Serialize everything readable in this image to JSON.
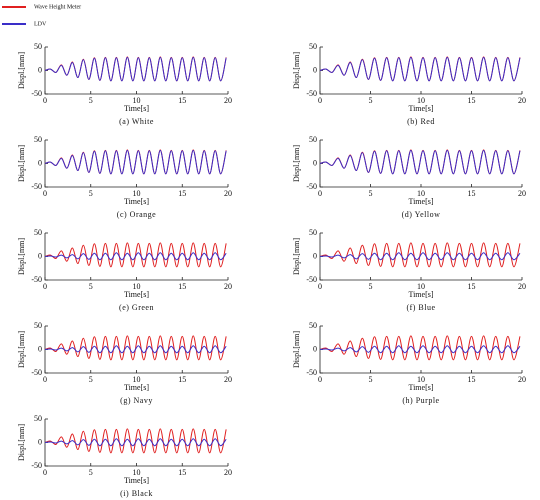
{
  "chart_data": [
    {
      "type": "line",
      "caption": "(a) White",
      "x_label": "Time[s]",
      "y_label": "Displ.[mm]",
      "xlim": [
        0,
        20
      ],
      "ylim": [
        -50,
        50
      ],
      "xticks": [
        0,
        5,
        10,
        15,
        20
      ],
      "yticks": [
        -50,
        0,
        50
      ],
      "x": [
        0,
        0.6,
        1.2,
        1.8,
        2.4,
        3,
        3.6,
        4.2,
        4.8,
        5.4,
        6,
        6.6,
        7.2,
        7.8,
        8.4,
        9,
        9.6,
        10.2,
        10.8,
        11.4,
        12,
        12.6,
        13.2,
        13.8,
        14.4,
        15,
        15.6,
        16.2,
        16.8,
        17.4,
        18,
        18.6,
        19.2,
        19.8
      ],
      "series": [
        {
          "name": "Wave Height Meter",
          "color": "#e02020",
          "values": [
            0,
            3,
            -4,
            12,
            -10,
            18,
            -15,
            24,
            -19,
            27,
            -21,
            28,
            -22,
            28,
            -22,
            29,
            -22,
            28,
            -22,
            28,
            -22,
            29,
            -22,
            28,
            -22,
            28,
            -22,
            29,
            -22,
            28,
            -22,
            28,
            -22,
            28
          ]
        },
        {
          "name": "LDV",
          "color": "#3a2ec8",
          "values": [
            0,
            3,
            -4,
            11,
            -10,
            17,
            -15,
            23,
            -19,
            26,
            -21,
            27,
            -22,
            27,
            -22,
            28,
            -22,
            27,
            -22,
            27,
            -22,
            28,
            -22,
            27,
            -22,
            27,
            -22,
            28,
            -22,
            27,
            -22,
            27,
            -22,
            27
          ]
        }
      ]
    },
    {
      "type": "line",
      "caption": "(b) Red",
      "x_label": "Time[s]",
      "y_label": "Displ.[mm]",
      "xlim": [
        0,
        20
      ],
      "ylim": [
        -50,
        50
      ],
      "xticks": [
        0,
        5,
        10,
        15,
        20
      ],
      "yticks": [
        -50,
        0,
        50
      ],
      "x": [
        0,
        0.6,
        1.2,
        1.8,
        2.4,
        3,
        3.6,
        4.2,
        4.8,
        5.4,
        6,
        6.6,
        7.2,
        7.8,
        8.4,
        9,
        9.6,
        10.2,
        10.8,
        11.4,
        12,
        12.6,
        13.2,
        13.8,
        14.4,
        15,
        15.6,
        16.2,
        16.8,
        17.4,
        18,
        18.6,
        19.2,
        19.8
      ],
      "series": [
        {
          "name": "Wave Height Meter",
          "color": "#e02020",
          "values": [
            0,
            3,
            -4,
            12,
            -10,
            18,
            -15,
            24,
            -19,
            27,
            -21,
            28,
            -22,
            28,
            -22,
            29,
            -22,
            28,
            -22,
            28,
            -22,
            29,
            -22,
            28,
            -22,
            28,
            -22,
            29,
            -22,
            28,
            -22,
            28,
            -22,
            28
          ]
        },
        {
          "name": "LDV",
          "color": "#3a2ec8",
          "values": [
            0,
            3,
            -4,
            11,
            -10,
            17,
            -15,
            23,
            -19,
            26,
            -21,
            27,
            -22,
            27,
            -22,
            28,
            -22,
            27,
            -22,
            27,
            -22,
            28,
            -22,
            27,
            -22,
            27,
            -22,
            28,
            -22,
            27,
            -22,
            27,
            -22,
            27
          ]
        }
      ]
    },
    {
      "type": "line",
      "caption": "(c) Orange",
      "x_label": "Time[s]",
      "y_label": "Displ.[mm]",
      "xlim": [
        0,
        20
      ],
      "ylim": [
        -50,
        50
      ],
      "xticks": [
        0,
        5,
        10,
        15,
        20
      ],
      "yticks": [
        -50,
        0,
        50
      ],
      "x": [
        0,
        0.6,
        1.2,
        1.8,
        2.4,
        3,
        3.6,
        4.2,
        4.8,
        5.4,
        6,
        6.6,
        7.2,
        7.8,
        8.4,
        9,
        9.6,
        10.2,
        10.8,
        11.4,
        12,
        12.6,
        13.2,
        13.8,
        14.4,
        15,
        15.6,
        16.2,
        16.8,
        17.4,
        18,
        18.6,
        19.2,
        19.8
      ],
      "series": [
        {
          "name": "Wave Height Meter",
          "color": "#e02020",
          "values": [
            0,
            3,
            -4,
            12,
            -10,
            18,
            -15,
            24,
            -19,
            27,
            -21,
            28,
            -22,
            28,
            -22,
            29,
            -22,
            28,
            -22,
            28,
            -22,
            29,
            -22,
            28,
            -22,
            28,
            -22,
            29,
            -22,
            28,
            -22,
            28,
            -22,
            28
          ]
        },
        {
          "name": "LDV",
          "color": "#3a2ec8",
          "values": [
            0,
            3,
            -4,
            11,
            -10,
            17,
            -15,
            23,
            -19,
            26,
            -21,
            27,
            -22,
            27,
            -22,
            28,
            -22,
            27,
            -22,
            27,
            -22,
            28,
            -22,
            27,
            -22,
            27,
            -22,
            28,
            -22,
            27,
            -22,
            27,
            -22,
            27
          ]
        }
      ]
    },
    {
      "type": "line",
      "caption": "(d) Yellow",
      "x_label": "Time[s]",
      "y_label": "Displ.[mm]",
      "xlim": [
        0,
        20
      ],
      "ylim": [
        -50,
        50
      ],
      "xticks": [
        0,
        5,
        10,
        15,
        20
      ],
      "yticks": [
        -50,
        0,
        50
      ],
      "x": [
        0,
        0.6,
        1.2,
        1.8,
        2.4,
        3,
        3.6,
        4.2,
        4.8,
        5.4,
        6,
        6.6,
        7.2,
        7.8,
        8.4,
        9,
        9.6,
        10.2,
        10.8,
        11.4,
        12,
        12.6,
        13.2,
        13.8,
        14.4,
        15,
        15.6,
        16.2,
        16.8,
        17.4,
        18,
        18.6,
        19.2,
        19.8
      ],
      "series": [
        {
          "name": "Wave Height Meter",
          "color": "#e02020",
          "values": [
            0,
            3,
            -4,
            12,
            -10,
            18,
            -15,
            24,
            -19,
            27,
            -21,
            28,
            -22,
            28,
            -22,
            29,
            -22,
            28,
            -22,
            28,
            -22,
            29,
            -22,
            28,
            -22,
            28,
            -22,
            29,
            -22,
            28,
            -22,
            28,
            -22,
            28
          ]
        },
        {
          "name": "LDV",
          "color": "#3a2ec8",
          "values": [
            0,
            3,
            -4,
            11,
            -10,
            17,
            -15,
            23,
            -19,
            26,
            -21,
            27,
            -22,
            27,
            -22,
            28,
            -22,
            27,
            -22,
            27,
            -22,
            28,
            -22,
            27,
            -22,
            27,
            -22,
            28,
            -22,
            27,
            -22,
            27,
            -22,
            27
          ]
        }
      ]
    },
    {
      "type": "line",
      "caption": "(e) Green",
      "x_label": "Time[s]",
      "y_label": "Displ.[mm]",
      "xlim": [
        0,
        20
      ],
      "ylim": [
        -50,
        50
      ],
      "xticks": [
        0,
        5,
        10,
        15,
        20
      ],
      "yticks": [
        -50,
        0,
        50
      ],
      "x": [
        0,
        0.6,
        1.2,
        1.8,
        2.4,
        3,
        3.6,
        4.2,
        4.8,
        5.4,
        6,
        6.6,
        7.2,
        7.8,
        8.4,
        9,
        9.6,
        10.2,
        10.8,
        11.4,
        12,
        12.6,
        13.2,
        13.8,
        14.4,
        15,
        15.6,
        16.2,
        16.8,
        17.4,
        18,
        18.6,
        19.2,
        19.8
      ],
      "series": [
        {
          "name": "Wave Height Meter",
          "color": "#e02020",
          "values": [
            0,
            3,
            -4,
            12,
            -10,
            18,
            -15,
            24,
            -19,
            27,
            -21,
            28,
            -22,
            28,
            -22,
            29,
            -22,
            28,
            -22,
            28,
            -22,
            29,
            -22,
            28,
            -22,
            28,
            -22,
            29,
            -22,
            28,
            -22,
            28,
            -22,
            28
          ]
        },
        {
          "name": "LDV",
          "color": "#3a2ec8",
          "values": [
            0,
            1,
            -1,
            3,
            -3,
            4,
            -5,
            6,
            -6,
            7,
            -7,
            7,
            -7,
            8,
            -7,
            7,
            -7,
            8,
            -7,
            7,
            -7,
            8,
            -7,
            7,
            -7,
            7,
            -7,
            8,
            -7,
            7,
            -7,
            8,
            -7,
            7
          ]
        }
      ]
    },
    {
      "type": "line",
      "caption": "(f) Blue",
      "x_label": "Time[s]",
      "y_label": "Displ.[mm]",
      "xlim": [
        0,
        20
      ],
      "ylim": [
        -50,
        50
      ],
      "xticks": [
        0,
        5,
        10,
        15,
        20
      ],
      "yticks": [
        -50,
        0,
        50
      ],
      "x": [
        0,
        0.6,
        1.2,
        1.8,
        2.4,
        3,
        3.6,
        4.2,
        4.8,
        5.4,
        6,
        6.6,
        7.2,
        7.8,
        8.4,
        9,
        9.6,
        10.2,
        10.8,
        11.4,
        12,
        12.6,
        13.2,
        13.8,
        14.4,
        15,
        15.6,
        16.2,
        16.8,
        17.4,
        18,
        18.6,
        19.2,
        19.8
      ],
      "series": [
        {
          "name": "Wave Height Meter",
          "color": "#e02020",
          "values": [
            0,
            3,
            -4,
            12,
            -10,
            18,
            -15,
            24,
            -19,
            27,
            -21,
            28,
            -22,
            28,
            -22,
            29,
            -22,
            28,
            -22,
            28,
            -22,
            29,
            -22,
            28,
            -22,
            28,
            -22,
            29,
            -22,
            28,
            -22,
            28,
            -22,
            28
          ]
        },
        {
          "name": "LDV",
          "color": "#3a2ec8",
          "values": [
            0,
            1,
            -1,
            3,
            -3,
            4,
            -5,
            6,
            -6,
            7,
            -7,
            7,
            -7,
            8,
            -7,
            7,
            -7,
            8,
            -7,
            7,
            -7,
            8,
            -7,
            7,
            -7,
            7,
            -7,
            8,
            -7,
            7,
            -7,
            8,
            -7,
            7
          ]
        }
      ]
    },
    {
      "type": "line",
      "caption": "(g) Navy",
      "x_label": "Time[s]",
      "y_label": "Displ.[mm]",
      "xlim": [
        0,
        20
      ],
      "ylim": [
        -50,
        50
      ],
      "xticks": [
        0,
        5,
        10,
        15,
        20
      ],
      "yticks": [
        -50,
        0,
        50
      ],
      "x": [
        0,
        0.6,
        1.2,
        1.8,
        2.4,
        3,
        3.6,
        4.2,
        4.8,
        5.4,
        6,
        6.6,
        7.2,
        7.8,
        8.4,
        9,
        9.6,
        10.2,
        10.8,
        11.4,
        12,
        12.6,
        13.2,
        13.8,
        14.4,
        15,
        15.6,
        16.2,
        16.8,
        17.4,
        18,
        18.6,
        19.2,
        19.8
      ],
      "series": [
        {
          "name": "Wave Height Meter",
          "color": "#e02020",
          "values": [
            0,
            3,
            -4,
            12,
            -10,
            18,
            -15,
            24,
            -19,
            27,
            -21,
            28,
            -22,
            28,
            -22,
            29,
            -22,
            28,
            -22,
            28,
            -22,
            29,
            -22,
            28,
            -22,
            28,
            -22,
            29,
            -22,
            28,
            -22,
            28,
            -22,
            28
          ]
        },
        {
          "name": "LDV",
          "color": "#3a2ec8",
          "values": [
            0,
            1,
            -1,
            3,
            -3,
            4,
            -5,
            6,
            -6,
            7,
            -7,
            7,
            -7,
            8,
            -7,
            7,
            -7,
            8,
            -7,
            7,
            -7,
            8,
            -7,
            7,
            -7,
            7,
            -7,
            8,
            -7,
            7,
            -7,
            8,
            -7,
            7
          ]
        }
      ]
    },
    {
      "type": "line",
      "caption": "(h) Purple",
      "x_label": "Time[s]",
      "y_label": "Displ.[mm]",
      "xlim": [
        0,
        20
      ],
      "ylim": [
        -50,
        50
      ],
      "xticks": [
        0,
        5,
        10,
        15,
        20
      ],
      "yticks": [
        -50,
        0,
        50
      ],
      "x": [
        0,
        0.6,
        1.2,
        1.8,
        2.4,
        3,
        3.6,
        4.2,
        4.8,
        5.4,
        6,
        6.6,
        7.2,
        7.8,
        8.4,
        9,
        9.6,
        10.2,
        10.8,
        11.4,
        12,
        12.6,
        13.2,
        13.8,
        14.4,
        15,
        15.6,
        16.2,
        16.8,
        17.4,
        18,
        18.6,
        19.2,
        19.8
      ],
      "series": [
        {
          "name": "Wave Height Meter",
          "color": "#e02020",
          "values": [
            0,
            3,
            -4,
            12,
            -10,
            18,
            -15,
            24,
            -19,
            27,
            -21,
            28,
            -22,
            28,
            -22,
            29,
            -22,
            28,
            -22,
            28,
            -22,
            29,
            -22,
            28,
            -22,
            28,
            -22,
            29,
            -22,
            28,
            -22,
            28,
            -22,
            28
          ]
        },
        {
          "name": "LDV",
          "color": "#3a2ec8",
          "values": [
            0,
            1,
            -1,
            3,
            -3,
            4,
            -5,
            6,
            -6,
            7,
            -7,
            7,
            -7,
            8,
            -7,
            7,
            -7,
            8,
            -7,
            7,
            -7,
            8,
            -7,
            7,
            -7,
            7,
            -7,
            8,
            -7,
            7,
            -7,
            8,
            -7,
            7
          ]
        }
      ]
    },
    {
      "type": "line",
      "caption": "(i) Black",
      "x_label": "Time[s]",
      "y_label": "Displ.[mm]",
      "xlim": [
        0,
        20
      ],
      "ylim": [
        -50,
        50
      ],
      "xticks": [
        0,
        5,
        10,
        15,
        20
      ],
      "yticks": [
        -50,
        0,
        50
      ],
      "x": [
        0,
        0.6,
        1.2,
        1.8,
        2.4,
        3,
        3.6,
        4.2,
        4.8,
        5.4,
        6,
        6.6,
        7.2,
        7.8,
        8.4,
        9,
        9.6,
        10.2,
        10.8,
        11.4,
        12,
        12.6,
        13.2,
        13.8,
        14.4,
        15,
        15.6,
        16.2,
        16.8,
        17.4,
        18,
        18.6,
        19.2,
        19.8
      ],
      "series": [
        {
          "name": "Wave Height Meter",
          "color": "#e02020",
          "values": [
            0,
            3,
            -4,
            12,
            -10,
            18,
            -15,
            24,
            -19,
            27,
            -21,
            28,
            -22,
            28,
            -22,
            29,
            -22,
            28,
            -22,
            28,
            -22,
            29,
            -22,
            28,
            -22,
            28,
            -22,
            29,
            -22,
            28,
            -22,
            28,
            -22,
            28
          ]
        },
        {
          "name": "LDV",
          "color": "#3a2ec8",
          "values": [
            0,
            1,
            -1,
            3,
            -3,
            4,
            -5,
            6,
            -6,
            7,
            -7,
            7,
            -7,
            8,
            -7,
            7,
            -7,
            8,
            -7,
            7,
            -7,
            8,
            -7,
            7,
            -7,
            7,
            -7,
            8,
            -7,
            7,
            -7,
            8,
            -7,
            7
          ]
        }
      ]
    }
  ]
}
